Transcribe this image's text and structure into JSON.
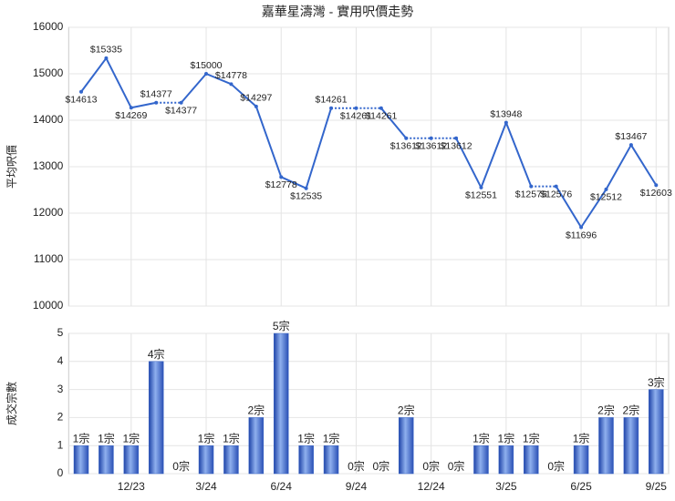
{
  "chart_data": [
    {
      "type": "line",
      "title": "嘉華星濤灣 - 實用呎價走勢",
      "y_label": "平均呎價",
      "color": "#3366cc",
      "grid": true,
      "ylim": [
        10000,
        16000
      ],
      "yticks": [
        10000,
        11000,
        12000,
        13000,
        14000,
        15000,
        16000
      ],
      "values": [
        14613,
        15335,
        14269,
        14377,
        14377,
        15000,
        14778,
        14297,
        12778,
        12535,
        14261,
        14261,
        14261,
        13612,
        13612,
        13612,
        12551,
        13948,
        12576,
        12576,
        11696,
        12512,
        13467,
        12603
      ],
      "value_labels": [
        "$14613",
        "$15335",
        "$14269",
        "$14377",
        "$14377",
        "$15000",
        "$14778",
        "$14297",
        "$12778",
        "$12535",
        "$14261",
        "$14261",
        "$14261",
        "$13612",
        "$13612",
        "$13612",
        "$12551",
        "$13948",
        "$12576",
        "$12576",
        "$11696",
        "$12512",
        "$13467",
        "$12603"
      ]
    },
    {
      "type": "bar",
      "y_label": "成交宗數",
      "color": "#3a66c8",
      "grid": true,
      "ylim": [
        0,
        5
      ],
      "yticks": [
        0,
        1,
        2,
        3,
        4,
        5
      ],
      "categories": [
        null,
        null,
        "12/23",
        null,
        null,
        "3/24",
        null,
        null,
        "6/24",
        null,
        null,
        "9/24",
        null,
        null,
        "12/24",
        null,
        null,
        "3/25",
        null,
        null,
        "6/25",
        null,
        null,
        "9/25"
      ],
      "values": [
        1,
        1,
        1,
        4,
        0,
        1,
        1,
        2,
        5,
        1,
        1,
        0,
        0,
        2,
        0,
        0,
        1,
        1,
        1,
        0,
        1,
        2,
        2,
        3
      ],
      "value_labels": [
        "1宗",
        "1宗",
        "1宗",
        "4宗",
        "0宗",
        "1宗",
        "1宗",
        "2宗",
        "5宗",
        "1宗",
        "1宗",
        "0宗",
        "0宗",
        "2宗",
        "0宗",
        "0宗",
        "1宗",
        "1宗",
        "1宗",
        "0宗",
        "1宗",
        "2宗",
        "2宗",
        "3宗"
      ]
    }
  ]
}
